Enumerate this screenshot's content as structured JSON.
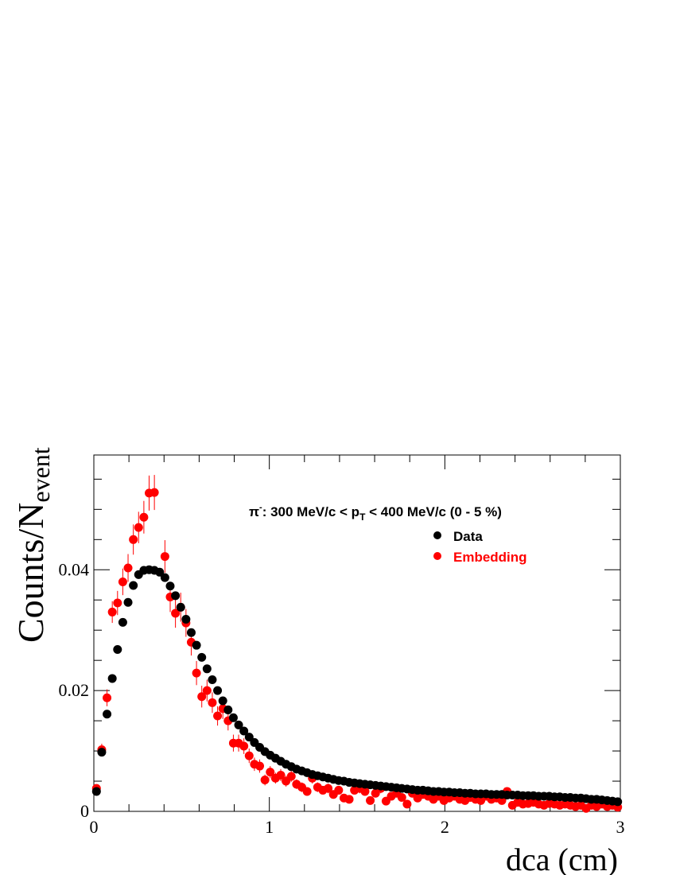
{
  "chart_data": {
    "type": "scatter",
    "xlabel": "dca (cm)",
    "ylabel_main": "Counts/N",
    "ylabel_sub": "event",
    "xlim": [
      0,
      3
    ],
    "ylim": [
      0,
      0.059
    ],
    "x_ticks": [
      {
        "value": 0,
        "label": "0"
      },
      {
        "value": 1,
        "label": "1"
      },
      {
        "value": 2,
        "label": "2"
      },
      {
        "value": 3,
        "label": "3"
      }
    ],
    "y_ticks": [
      {
        "value": 0,
        "label": "0"
      },
      {
        "value": 0.02,
        "label": "0.02"
      },
      {
        "value": 0.04,
        "label": "0.04"
      }
    ],
    "annotation": {
      "particle": "π",
      "charge": "-",
      "text_a": ": 300 MeV/c < p",
      "sub": "T",
      "text_b": " < 400 MeV/c (0 - 5 %)"
    },
    "legend_position": "top-right",
    "series": [
      {
        "name": "Data",
        "color": "#000000",
        "x": [
          0.015,
          0.045,
          0.075,
          0.105,
          0.135,
          0.165,
          0.195,
          0.225,
          0.255,
          0.285,
          0.315,
          0.345,
          0.375,
          0.405,
          0.435,
          0.465,
          0.495,
          0.525,
          0.555,
          0.585,
          0.615,
          0.645,
          0.675,
          0.705,
          0.735,
          0.765,
          0.795,
          0.825,
          0.855,
          0.885,
          0.915,
          0.945,
          0.975,
          1.005,
          1.035,
          1.065,
          1.095,
          1.125,
          1.155,
          1.185,
          1.215,
          1.245,
          1.275,
          1.305,
          1.335,
          1.365,
          1.395,
          1.425,
          1.455,
          1.485,
          1.515,
          1.545,
          1.575,
          1.605,
          1.635,
          1.665,
          1.695,
          1.725,
          1.755,
          1.785,
          1.815,
          1.845,
          1.875,
          1.905,
          1.935,
          1.965,
          1.995,
          2.025,
          2.055,
          2.085,
          2.115,
          2.145,
          2.175,
          2.205,
          2.235,
          2.265,
          2.295,
          2.325,
          2.355,
          2.385,
          2.415,
          2.445,
          2.475,
          2.505,
          2.535,
          2.565,
          2.595,
          2.625,
          2.655,
          2.685,
          2.715,
          2.745,
          2.775,
          2.805,
          2.835,
          2.865,
          2.895,
          2.925,
          2.955,
          2.985
        ],
        "y": [
          0.0033,
          0.0098,
          0.0161,
          0.022,
          0.0268,
          0.0313,
          0.0346,
          0.0374,
          0.0392,
          0.0399,
          0.04,
          0.0399,
          0.0396,
          0.0387,
          0.0373,
          0.0357,
          0.0338,
          0.0318,
          0.0296,
          0.0275,
          0.0255,
          0.0236,
          0.0218,
          0.02,
          0.0183,
          0.0168,
          0.0155,
          0.0143,
          0.0133,
          0.0123,
          0.0114,
          0.0106,
          0.0099,
          0.0093,
          0.0088,
          0.0083,
          0.0078,
          0.0074,
          0.007,
          0.0067,
          0.0064,
          0.0061,
          0.0059,
          0.0057,
          0.0055,
          0.0053,
          0.0051,
          0.005,
          0.0048,
          0.0047,
          0.0046,
          0.0045,
          0.0044,
          0.0043,
          0.0042,
          0.0041,
          0.004,
          0.0039,
          0.0038,
          0.0037,
          0.0036,
          0.0035,
          0.0035,
          0.0034,
          0.0033,
          0.0033,
          0.0032,
          0.0032,
          0.0031,
          0.0031,
          0.003,
          0.003,
          0.0029,
          0.0029,
          0.0029,
          0.0028,
          0.0028,
          0.0028,
          0.0027,
          0.0027,
          0.0027,
          0.0026,
          0.0026,
          0.0026,
          0.0025,
          0.0025,
          0.0025,
          0.0024,
          0.0024,
          0.0023,
          0.0023,
          0.0022,
          0.0022,
          0.0021,
          0.002,
          0.002,
          0.0019,
          0.0018,
          0.0017,
          0.0016
        ],
        "err": [
          0.0003,
          0.0004,
          0.0004,
          0.0004,
          0.0004,
          0.0004,
          0.0004,
          0.0004,
          0.0004,
          0.0004,
          0.0004,
          0.0004,
          0.0004,
          0.0004,
          0.0004,
          0.0004,
          0.0004,
          0.0004,
          0.0003,
          0.0003,
          0.0003,
          0.0003,
          0.0003,
          0.0003,
          0.0003,
          0.0003,
          0.0003,
          0.0003,
          0.0003,
          0.0003,
          0.0003,
          0.0002,
          0.0002,
          0.0002,
          0.0002,
          0.0002,
          0.0002,
          0.0002,
          0.0002,
          0.0002,
          0.0002,
          0.0002,
          0.0002,
          0.0002,
          0.0002,
          0.0002,
          0.0002,
          0.0002,
          0.0002,
          0.0002,
          0.0002,
          0.0002,
          0.0002,
          0.0002,
          0.0002,
          0.0002,
          0.0002,
          0.0002,
          0.0002,
          0.0002,
          0.0002,
          0.0002,
          0.0002,
          0.0002,
          0.0002,
          0.0002,
          0.0002,
          0.0002,
          0.0002,
          0.0002,
          0.0002,
          0.0002,
          0.0002,
          0.0002,
          0.0002,
          0.0002,
          0.0002,
          0.0002,
          0.0002,
          0.0002,
          0.0002,
          0.0002,
          0.0002,
          0.0002,
          0.0002,
          0.0002,
          0.0002,
          0.0002,
          0.0002,
          0.0002,
          0.0002,
          0.0002,
          0.0002,
          0.0002,
          0.0002,
          0.0002,
          0.0002,
          0.0002,
          0.0002,
          0.0002
        ]
      },
      {
        "name": "Embedding",
        "color": "#ff0000",
        "x": [
          0.015,
          0.045,
          0.075,
          0.105,
          0.135,
          0.165,
          0.195,
          0.225,
          0.255,
          0.285,
          0.315,
          0.345,
          0.375,
          0.405,
          0.435,
          0.465,
          0.495,
          0.525,
          0.555,
          0.585,
          0.615,
          0.645,
          0.675,
          0.705,
          0.735,
          0.765,
          0.795,
          0.825,
          0.855,
          0.885,
          0.915,
          0.945,
          0.975,
          1.005,
          1.035,
          1.065,
          1.095,
          1.125,
          1.155,
          1.185,
          1.215,
          1.245,
          1.275,
          1.305,
          1.335,
          1.365,
          1.395,
          1.425,
          1.455,
          1.485,
          1.515,
          1.545,
          1.575,
          1.605,
          1.635,
          1.665,
          1.695,
          1.725,
          1.755,
          1.785,
          1.815,
          1.845,
          1.875,
          1.905,
          1.935,
          1.965,
          1.995,
          2.025,
          2.055,
          2.085,
          2.115,
          2.145,
          2.175,
          2.205,
          2.235,
          2.265,
          2.295,
          2.325,
          2.355,
          2.385,
          2.415,
          2.445,
          2.475,
          2.505,
          2.535,
          2.565,
          2.595,
          2.625,
          2.655,
          2.685,
          2.715,
          2.745,
          2.775,
          2.805,
          2.835,
          2.865,
          2.895,
          2.925,
          2.955,
          2.985
        ],
        "y": [
          0.0038,
          0.0102,
          0.0188,
          0.033,
          0.0345,
          0.038,
          0.0403,
          0.045,
          0.047,
          0.0487,
          0.0527,
          0.0528,
          null,
          0.0422,
          0.0355,
          0.0328,
          0.0338,
          0.0312,
          0.028,
          0.0229,
          0.019,
          0.02,
          0.018,
          0.0158,
          0.017,
          0.015,
          0.0113,
          0.0113,
          0.0108,
          0.0092,
          0.0078,
          0.0075,
          0.0052,
          0.0065,
          0.0055,
          0.006,
          0.005,
          0.0058,
          0.0045,
          0.004,
          0.0033,
          0.0055,
          0.004,
          0.0035,
          0.0038,
          0.0028,
          0.0035,
          0.0022,
          0.002,
          0.0035,
          0.0038,
          0.0033,
          0.0018,
          0.003,
          0.0038,
          0.0017,
          0.0025,
          0.003,
          0.0023,
          0.0012,
          0.003,
          0.0022,
          0.0028,
          0.0025,
          0.002,
          0.0025,
          0.0018,
          0.0022,
          0.0025,
          0.002,
          0.0018,
          0.0023,
          0.002,
          0.0018,
          0.0025,
          0.002,
          0.0022,
          0.0018,
          0.0033,
          0.001,
          0.0015,
          0.0012,
          0.0013,
          0.0015,
          0.0012,
          0.001,
          0.0013,
          0.0012,
          0.001,
          0.0012,
          0.001,
          0.0008,
          0.001,
          0.0005,
          0.001,
          0.0008,
          0.0012,
          0.0008,
          0.001,
          0.0007
        ],
        "err": [
          0.0006,
          0.001,
          0.0014,
          0.0018,
          0.002,
          0.0022,
          0.0023,
          0.0025,
          0.0026,
          0.0027,
          0.0029,
          0.0029,
          0.0,
          0.0027,
          0.0025,
          0.0024,
          0.0024,
          0.0023,
          0.0022,
          0.002,
          0.0018,
          0.0018,
          0.0017,
          0.0016,
          0.0017,
          0.0016,
          0.0014,
          0.0014,
          0.0013,
          0.0012,
          0.0011,
          0.0011,
          0.0009,
          0.001,
          0.0009,
          0.001,
          0.0009,
          0.0009,
          0.0008,
          0.0008,
          0.0007,
          0.0009,
          0.0008,
          0.0007,
          0.0008,
          0.0007,
          0.0007,
          0.0006,
          0.0006,
          0.0007,
          0.0008,
          0.0007,
          0.0005,
          0.0007,
          0.0008,
          0.0005,
          0.0006,
          0.0007,
          0.0006,
          0.0004,
          0.0007,
          0.0006,
          0.0006,
          0.0006,
          0.0005,
          0.0006,
          0.0005,
          0.0006,
          0.0006,
          0.0005,
          0.0005,
          0.0006,
          0.0005,
          0.0005,
          0.0006,
          0.0005,
          0.0006,
          0.0005,
          0.0007,
          0.0004,
          0.0004,
          0.0004,
          0.0004,
          0.0004,
          0.0004,
          0.0004,
          0.0004,
          0.0004,
          0.0004,
          0.0004,
          0.0004,
          0.0003,
          0.0004,
          0.0003,
          0.0004,
          0.0003,
          0.0004,
          0.0003,
          0.0004,
          0.0003
        ]
      }
    ]
  }
}
